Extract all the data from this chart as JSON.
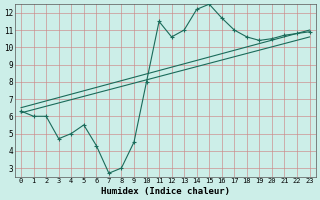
{
  "title": "",
  "xlabel": "Humidex (Indice chaleur)",
  "bg_color": "#cceee8",
  "grid_color": "#cc8888",
  "line_color": "#1a6b5a",
  "xlim": [
    -0.5,
    23.5
  ],
  "ylim": [
    2.5,
    12.5
  ],
  "yticks": [
    3,
    4,
    5,
    6,
    7,
    8,
    9,
    10,
    11,
    12
  ],
  "xticks": [
    0,
    1,
    2,
    3,
    4,
    5,
    6,
    7,
    8,
    9,
    10,
    11,
    12,
    13,
    14,
    15,
    16,
    17,
    18,
    19,
    20,
    21,
    22,
    23
  ],
  "line1_x": [
    0,
    1,
    2,
    3,
    4,
    5,
    6,
    7,
    8,
    9,
    10,
    11,
    12,
    13,
    14,
    15,
    16,
    17,
    18,
    19,
    20,
    21,
    22,
    23
  ],
  "line1_y": [
    6.3,
    6.0,
    6.0,
    4.7,
    5.0,
    5.5,
    4.3,
    2.7,
    3.0,
    4.5,
    8.0,
    11.5,
    10.6,
    11.0,
    12.2,
    12.5,
    11.7,
    11.0,
    10.6,
    10.4,
    10.5,
    10.7,
    10.8,
    10.9
  ],
  "line2_x": [
    0,
    23
  ],
  "line2_y": [
    6.2,
    10.6
  ],
  "line3_x": [
    0,
    23
  ],
  "line3_y": [
    6.5,
    11.0
  ]
}
